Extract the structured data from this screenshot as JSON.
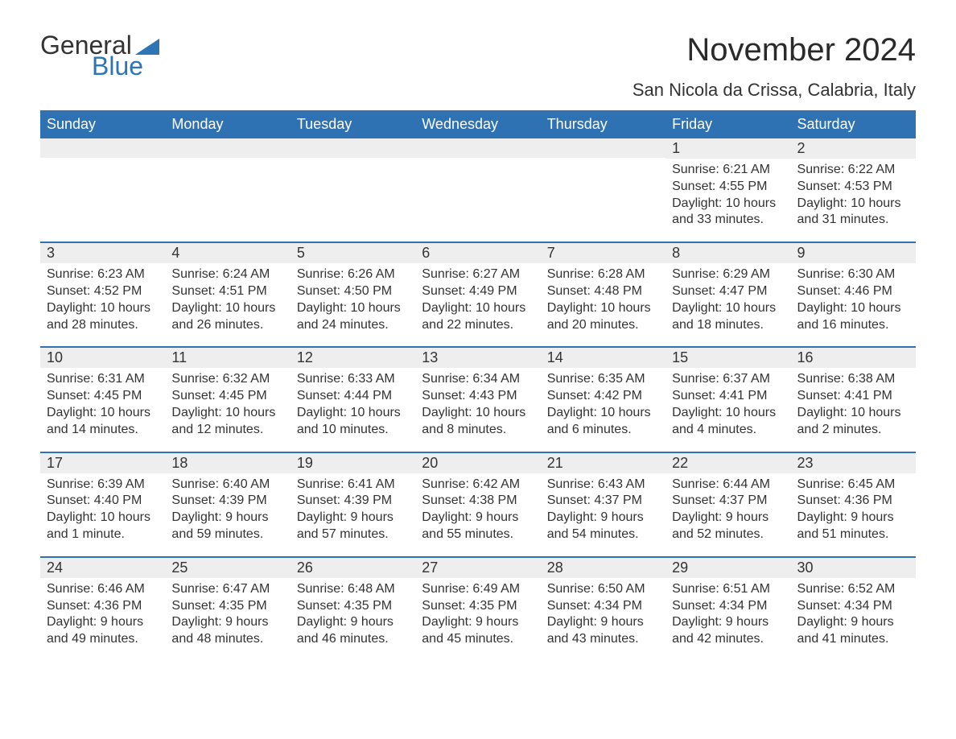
{
  "brand": {
    "word1": "General",
    "word2": "Blue",
    "word1_color": "#333333",
    "word2_color": "#2e75b6",
    "triangle_color": "#2e75b6"
  },
  "title": "November 2024",
  "location": "San Nicola da Crissa, Calabria, Italy",
  "colors": {
    "header_bg": "#2e72b4",
    "header_text": "#ffffff",
    "band_bg": "#eeeeee",
    "week_border": "#2e72b4",
    "body_text": "#333333",
    "page_bg": "#ffffff"
  },
  "typography": {
    "title_fontsize": 40,
    "location_fontsize": 22,
    "dow_fontsize": 18,
    "daynum_fontsize": 18,
    "body_fontsize": 16
  },
  "layout": {
    "columns": 7,
    "rows": 5,
    "first_day_column_index": 5
  },
  "days_of_week": [
    "Sunday",
    "Monday",
    "Tuesday",
    "Wednesday",
    "Thursday",
    "Friday",
    "Saturday"
  ],
  "weeks": [
    [
      null,
      null,
      null,
      null,
      null,
      {
        "num": "1",
        "sunrise": "Sunrise: 6:21 AM",
        "sunset": "Sunset: 4:55 PM",
        "daylight": "Daylight: 10 hours and 33 minutes."
      },
      {
        "num": "2",
        "sunrise": "Sunrise: 6:22 AM",
        "sunset": "Sunset: 4:53 PM",
        "daylight": "Daylight: 10 hours and 31 minutes."
      }
    ],
    [
      {
        "num": "3",
        "sunrise": "Sunrise: 6:23 AM",
        "sunset": "Sunset: 4:52 PM",
        "daylight": "Daylight: 10 hours and 28 minutes."
      },
      {
        "num": "4",
        "sunrise": "Sunrise: 6:24 AM",
        "sunset": "Sunset: 4:51 PM",
        "daylight": "Daylight: 10 hours and 26 minutes."
      },
      {
        "num": "5",
        "sunrise": "Sunrise: 6:26 AM",
        "sunset": "Sunset: 4:50 PM",
        "daylight": "Daylight: 10 hours and 24 minutes."
      },
      {
        "num": "6",
        "sunrise": "Sunrise: 6:27 AM",
        "sunset": "Sunset: 4:49 PM",
        "daylight": "Daylight: 10 hours and 22 minutes."
      },
      {
        "num": "7",
        "sunrise": "Sunrise: 6:28 AM",
        "sunset": "Sunset: 4:48 PM",
        "daylight": "Daylight: 10 hours and 20 minutes."
      },
      {
        "num": "8",
        "sunrise": "Sunrise: 6:29 AM",
        "sunset": "Sunset: 4:47 PM",
        "daylight": "Daylight: 10 hours and 18 minutes."
      },
      {
        "num": "9",
        "sunrise": "Sunrise: 6:30 AM",
        "sunset": "Sunset: 4:46 PM",
        "daylight": "Daylight: 10 hours and 16 minutes."
      }
    ],
    [
      {
        "num": "10",
        "sunrise": "Sunrise: 6:31 AM",
        "sunset": "Sunset: 4:45 PM",
        "daylight": "Daylight: 10 hours and 14 minutes."
      },
      {
        "num": "11",
        "sunrise": "Sunrise: 6:32 AM",
        "sunset": "Sunset: 4:45 PM",
        "daylight": "Daylight: 10 hours and 12 minutes."
      },
      {
        "num": "12",
        "sunrise": "Sunrise: 6:33 AM",
        "sunset": "Sunset: 4:44 PM",
        "daylight": "Daylight: 10 hours and 10 minutes."
      },
      {
        "num": "13",
        "sunrise": "Sunrise: 6:34 AM",
        "sunset": "Sunset: 4:43 PM",
        "daylight": "Daylight: 10 hours and 8 minutes."
      },
      {
        "num": "14",
        "sunrise": "Sunrise: 6:35 AM",
        "sunset": "Sunset: 4:42 PM",
        "daylight": "Daylight: 10 hours and 6 minutes."
      },
      {
        "num": "15",
        "sunrise": "Sunrise: 6:37 AM",
        "sunset": "Sunset: 4:41 PM",
        "daylight": "Daylight: 10 hours and 4 minutes."
      },
      {
        "num": "16",
        "sunrise": "Sunrise: 6:38 AM",
        "sunset": "Sunset: 4:41 PM",
        "daylight": "Daylight: 10 hours and 2 minutes."
      }
    ],
    [
      {
        "num": "17",
        "sunrise": "Sunrise: 6:39 AM",
        "sunset": "Sunset: 4:40 PM",
        "daylight": "Daylight: 10 hours and 1 minute."
      },
      {
        "num": "18",
        "sunrise": "Sunrise: 6:40 AM",
        "sunset": "Sunset: 4:39 PM",
        "daylight": "Daylight: 9 hours and 59 minutes."
      },
      {
        "num": "19",
        "sunrise": "Sunrise: 6:41 AM",
        "sunset": "Sunset: 4:39 PM",
        "daylight": "Daylight: 9 hours and 57 minutes."
      },
      {
        "num": "20",
        "sunrise": "Sunrise: 6:42 AM",
        "sunset": "Sunset: 4:38 PM",
        "daylight": "Daylight: 9 hours and 55 minutes."
      },
      {
        "num": "21",
        "sunrise": "Sunrise: 6:43 AM",
        "sunset": "Sunset: 4:37 PM",
        "daylight": "Daylight: 9 hours and 54 minutes."
      },
      {
        "num": "22",
        "sunrise": "Sunrise: 6:44 AM",
        "sunset": "Sunset: 4:37 PM",
        "daylight": "Daylight: 9 hours and 52 minutes."
      },
      {
        "num": "23",
        "sunrise": "Sunrise: 6:45 AM",
        "sunset": "Sunset: 4:36 PM",
        "daylight": "Daylight: 9 hours and 51 minutes."
      }
    ],
    [
      {
        "num": "24",
        "sunrise": "Sunrise: 6:46 AM",
        "sunset": "Sunset: 4:36 PM",
        "daylight": "Daylight: 9 hours and 49 minutes."
      },
      {
        "num": "25",
        "sunrise": "Sunrise: 6:47 AM",
        "sunset": "Sunset: 4:35 PM",
        "daylight": "Daylight: 9 hours and 48 minutes."
      },
      {
        "num": "26",
        "sunrise": "Sunrise: 6:48 AM",
        "sunset": "Sunset: 4:35 PM",
        "daylight": "Daylight: 9 hours and 46 minutes."
      },
      {
        "num": "27",
        "sunrise": "Sunrise: 6:49 AM",
        "sunset": "Sunset: 4:35 PM",
        "daylight": "Daylight: 9 hours and 45 minutes."
      },
      {
        "num": "28",
        "sunrise": "Sunrise: 6:50 AM",
        "sunset": "Sunset: 4:34 PM",
        "daylight": "Daylight: 9 hours and 43 minutes."
      },
      {
        "num": "29",
        "sunrise": "Sunrise: 6:51 AM",
        "sunset": "Sunset: 4:34 PM",
        "daylight": "Daylight: 9 hours and 42 minutes."
      },
      {
        "num": "30",
        "sunrise": "Sunrise: 6:52 AM",
        "sunset": "Sunset: 4:34 PM",
        "daylight": "Daylight: 9 hours and 41 minutes."
      }
    ]
  ]
}
